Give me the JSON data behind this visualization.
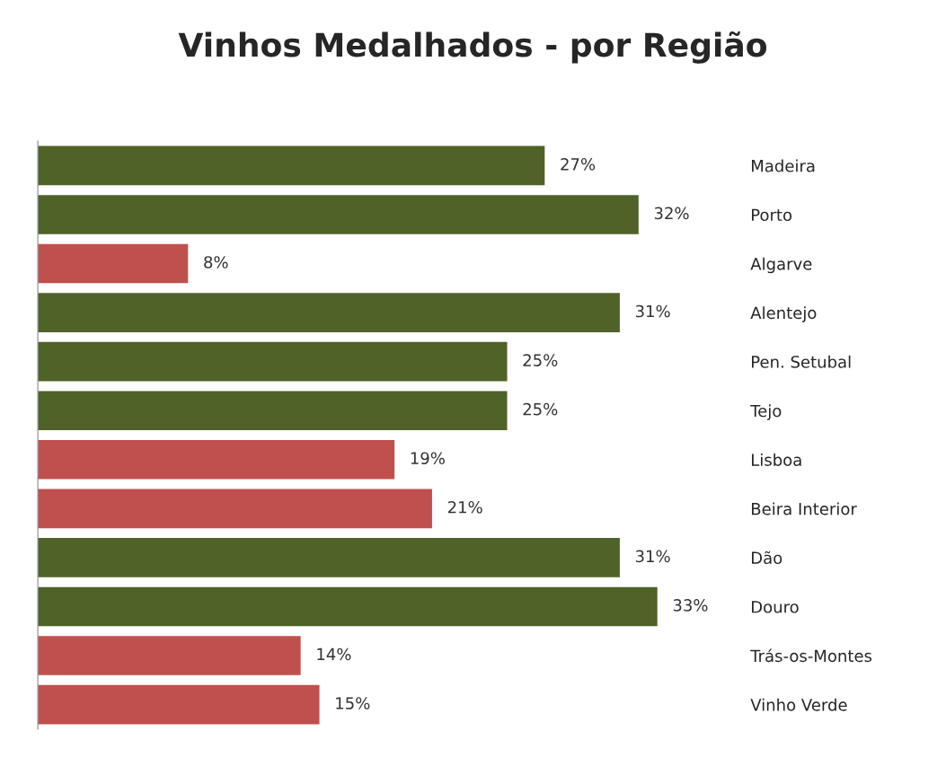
{
  "chart_data": {
    "type": "bar",
    "orientation": "horizontal",
    "title": "Vinhos Medalhados - por Região",
    "categories": [
      "Madeira",
      "Porto",
      "Algarve",
      "Alentejo",
      "Pen. Setubal",
      "Tejo",
      "Lisboa",
      "Beira Interior",
      "Dão",
      "Douro",
      "Trás-os-Montes",
      "Vinho Verde"
    ],
    "values": [
      27,
      32,
      8,
      31,
      25,
      25,
      19,
      21,
      31,
      33,
      14,
      15
    ],
    "colors": [
      "#4f6228",
      "#4f6228",
      "#c0504d",
      "#4f6228",
      "#4f6228",
      "#4f6228",
      "#c0504d",
      "#c0504d",
      "#4f6228",
      "#4f6228",
      "#c0504d",
      "#c0504d"
    ],
    "value_labels": [
      "27%",
      "32%",
      "8%",
      "31%",
      "25%",
      "25%",
      "19%",
      "21%",
      "31%",
      "33%",
      "14%",
      "15%"
    ],
    "grid": false,
    "legend": false
  }
}
